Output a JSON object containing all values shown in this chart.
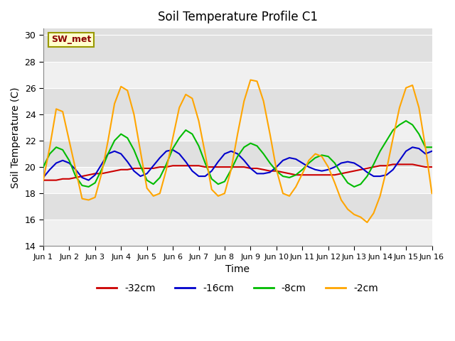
{
  "title": "Soil Temperature Profile C1",
  "xlabel": "Time",
  "ylabel": "Soil Temperature (C)",
  "ylim": [
    14,
    30.5
  ],
  "yticks": [
    14,
    16,
    18,
    20,
    22,
    24,
    26,
    28,
    30
  ],
  "annotation_label": "SW_met",
  "annotation_color": "#8B0000",
  "annotation_bg": "#FFFFCC",
  "annotation_border": "#999900",
  "bg_color_light": "#F0F0F0",
  "bg_color_dark": "#E0E0E0",
  "fig_bg": "#FFFFFF",
  "x_tick_labels": [
    "Jun 1",
    "Jun 2",
    "Jun 3",
    "Jun 4",
    "Jun 5",
    "Jun 6",
    "Jun 7",
    "Jun 8",
    "Jun 9",
    "Jun 10",
    "Jun 11",
    "Jun 12",
    "Jun 13",
    "Jun 14",
    "Jun 15",
    "Jun 16"
  ],
  "series": {
    "-32cm": {
      "color": "#CC0000",
      "linewidth": 1.5,
      "data": [
        19.0,
        19.0,
        19.0,
        19.1,
        19.1,
        19.2,
        19.3,
        19.4,
        19.5,
        19.5,
        19.6,
        19.7,
        19.8,
        19.8,
        19.9,
        19.9,
        19.9,
        19.9,
        20.0,
        20.0,
        20.1,
        20.1,
        20.1,
        20.1,
        20.1,
        20.0,
        20.0,
        20.0,
        20.0,
        20.0,
        20.0,
        20.0,
        19.9,
        19.9,
        19.8,
        19.7,
        19.7,
        19.6,
        19.5,
        19.4,
        19.4,
        19.4,
        19.4,
        19.4,
        19.4,
        19.4,
        19.5,
        19.6,
        19.7,
        19.8,
        19.9,
        20.0,
        20.1,
        20.1,
        20.2,
        20.2,
        20.2,
        20.2,
        20.1,
        20.0,
        20.0
      ]
    },
    "-16cm": {
      "color": "#0000CC",
      "linewidth": 1.5,
      "data": [
        19.2,
        19.8,
        20.3,
        20.5,
        20.3,
        19.8,
        19.2,
        19.0,
        19.4,
        20.2,
        21.0,
        21.2,
        21.0,
        20.4,
        19.7,
        19.3,
        19.5,
        20.1,
        20.7,
        21.2,
        21.3,
        21.0,
        20.4,
        19.7,
        19.3,
        19.3,
        19.7,
        20.4,
        21.0,
        21.2,
        21.0,
        20.5,
        19.9,
        19.5,
        19.5,
        19.6,
        20.0,
        20.5,
        20.7,
        20.6,
        20.3,
        20.0,
        19.8,
        19.7,
        19.8,
        20.0,
        20.3,
        20.4,
        20.3,
        20.0,
        19.6,
        19.3,
        19.3,
        19.4,
        19.8,
        20.5,
        21.2,
        21.5,
        21.4,
        21.0,
        21.2
      ]
    },
    "-8cm": {
      "color": "#00BB00",
      "linewidth": 1.5,
      "data": [
        20.0,
        21.0,
        21.5,
        21.3,
        20.5,
        19.3,
        18.6,
        18.5,
        18.8,
        19.8,
        21.0,
        22.0,
        22.5,
        22.2,
        21.3,
        20.1,
        19.0,
        18.7,
        19.2,
        20.2,
        21.4,
        22.2,
        22.8,
        22.5,
        21.6,
        20.3,
        19.1,
        18.7,
        18.9,
        19.8,
        20.8,
        21.5,
        21.8,
        21.6,
        21.0,
        20.3,
        19.7,
        19.3,
        19.2,
        19.4,
        19.8,
        20.3,
        20.7,
        20.9,
        20.8,
        20.3,
        19.5,
        18.8,
        18.5,
        18.7,
        19.3,
        20.2,
        21.2,
        22.0,
        22.8,
        23.2,
        23.5,
        23.2,
        22.5,
        21.5,
        21.5
      ]
    },
    "-2cm": {
      "color": "#FFA500",
      "linewidth": 1.5,
      "data": [
        19.0,
        21.5,
        24.4,
        24.2,
        22.0,
        19.8,
        17.6,
        17.5,
        17.7,
        19.5,
        22.0,
        24.8,
        26.1,
        25.8,
        24.0,
        21.2,
        18.4,
        17.8,
        18.0,
        19.8,
        22.2,
        24.5,
        25.5,
        25.2,
        23.5,
        21.0,
        18.3,
        17.8,
        18.0,
        19.8,
        22.5,
        25.0,
        26.6,
        26.5,
        25.0,
        22.5,
        19.8,
        18.0,
        17.8,
        18.5,
        19.5,
        20.5,
        21.0,
        20.8,
        20.0,
        18.8,
        17.5,
        16.8,
        16.4,
        16.2,
        15.8,
        16.5,
        17.8,
        19.8,
        22.2,
        24.5,
        26.0,
        26.2,
        24.5,
        21.5,
        18.0
      ]
    }
  },
  "legend": {
    "labels": [
      "-32cm",
      "-16cm",
      "-8cm",
      "-2cm"
    ],
    "colors": [
      "#CC0000",
      "#0000CC",
      "#00BB00",
      "#FFA500"
    ],
    "ncol": 4,
    "fontsize": 10
  }
}
